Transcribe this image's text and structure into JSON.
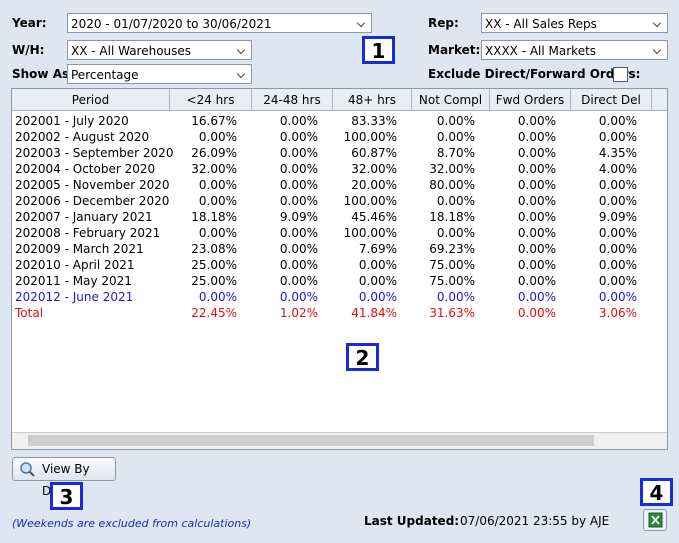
{
  "filters": {
    "year": {
      "label": "Year:",
      "value": "2020 - 01/07/2020 to 30/06/2021"
    },
    "warehouse": {
      "label": "W/H:",
      "value": "XX - All Warehouses"
    },
    "show_as": {
      "label": "Show As:",
      "value": "Percentage"
    },
    "rep": {
      "label": "Rep:",
      "value": "XX - All Sales Reps"
    },
    "market": {
      "label": "Market:",
      "value": "XXXX - All Markets"
    },
    "exclude": {
      "label": "Exclude Direct/Forward Orders:"
    }
  },
  "table": {
    "headers": [
      "Period",
      "<24 hrs",
      "24-48 hrs",
      "48+ hrs",
      "Not Compl",
      "Fwd Orders",
      "Direct Del"
    ],
    "rows": [
      [
        "202001 - July 2020",
        "16.67%",
        "0.00%",
        "83.33%",
        "0.00%",
        "0.00%",
        "0.00%"
      ],
      [
        "202002 - August 2020",
        "0.00%",
        "0.00%",
        "100.00%",
        "0.00%",
        "0.00%",
        "0.00%"
      ],
      [
        "202003 - September 2020",
        "26.09%",
        "0.00%",
        "60.87%",
        "8.70%",
        "0.00%",
        "4.35%"
      ],
      [
        "202004 - October 2020",
        "32.00%",
        "0.00%",
        "32.00%",
        "32.00%",
        "0.00%",
        "4.00%"
      ],
      [
        "202005 - November 2020",
        "0.00%",
        "0.00%",
        "20.00%",
        "80.00%",
        "0.00%",
        "0.00%"
      ],
      [
        "202006 - December 2020",
        "0.00%",
        "0.00%",
        "100.00%",
        "0.00%",
        "0.00%",
        "0.00%"
      ],
      [
        "202007 - January 2021",
        "18.18%",
        "9.09%",
        "45.46%",
        "18.18%",
        "0.00%",
        "9.09%"
      ],
      [
        "202008 - February 2021",
        "0.00%",
        "0.00%",
        "100.00%",
        "0.00%",
        "0.00%",
        "0.00%"
      ],
      [
        "202009 - March 2021",
        "23.08%",
        "0.00%",
        "7.69%",
        "69.23%",
        "0.00%",
        "0.00%"
      ],
      [
        "202010 - April 2021",
        "25.00%",
        "0.00%",
        "0.00%",
        "75.00%",
        "0.00%",
        "0.00%"
      ],
      [
        "202011 - May 2021",
        "25.00%",
        "0.00%",
        "0.00%",
        "75.00%",
        "0.00%",
        "0.00%"
      ],
      [
        "202012 - June 2021",
        "0.00%",
        "0.00%",
        "0.00%",
        "0.00%",
        "0.00%",
        "0.00%"
      ],
      [
        "Total",
        "22.45%",
        "1.02%",
        "41.84%",
        "31.63%",
        "0.00%",
        "3.06%"
      ]
    ]
  },
  "callouts": [
    "1",
    "2",
    "3",
    "4"
  ],
  "footer": {
    "button": "View By Day",
    "note": "(Weekends are excluded from calculations)",
    "last_updated_label": "Last Updated:",
    "last_updated_value": "07/06/2021 23:55 by AJE"
  }
}
